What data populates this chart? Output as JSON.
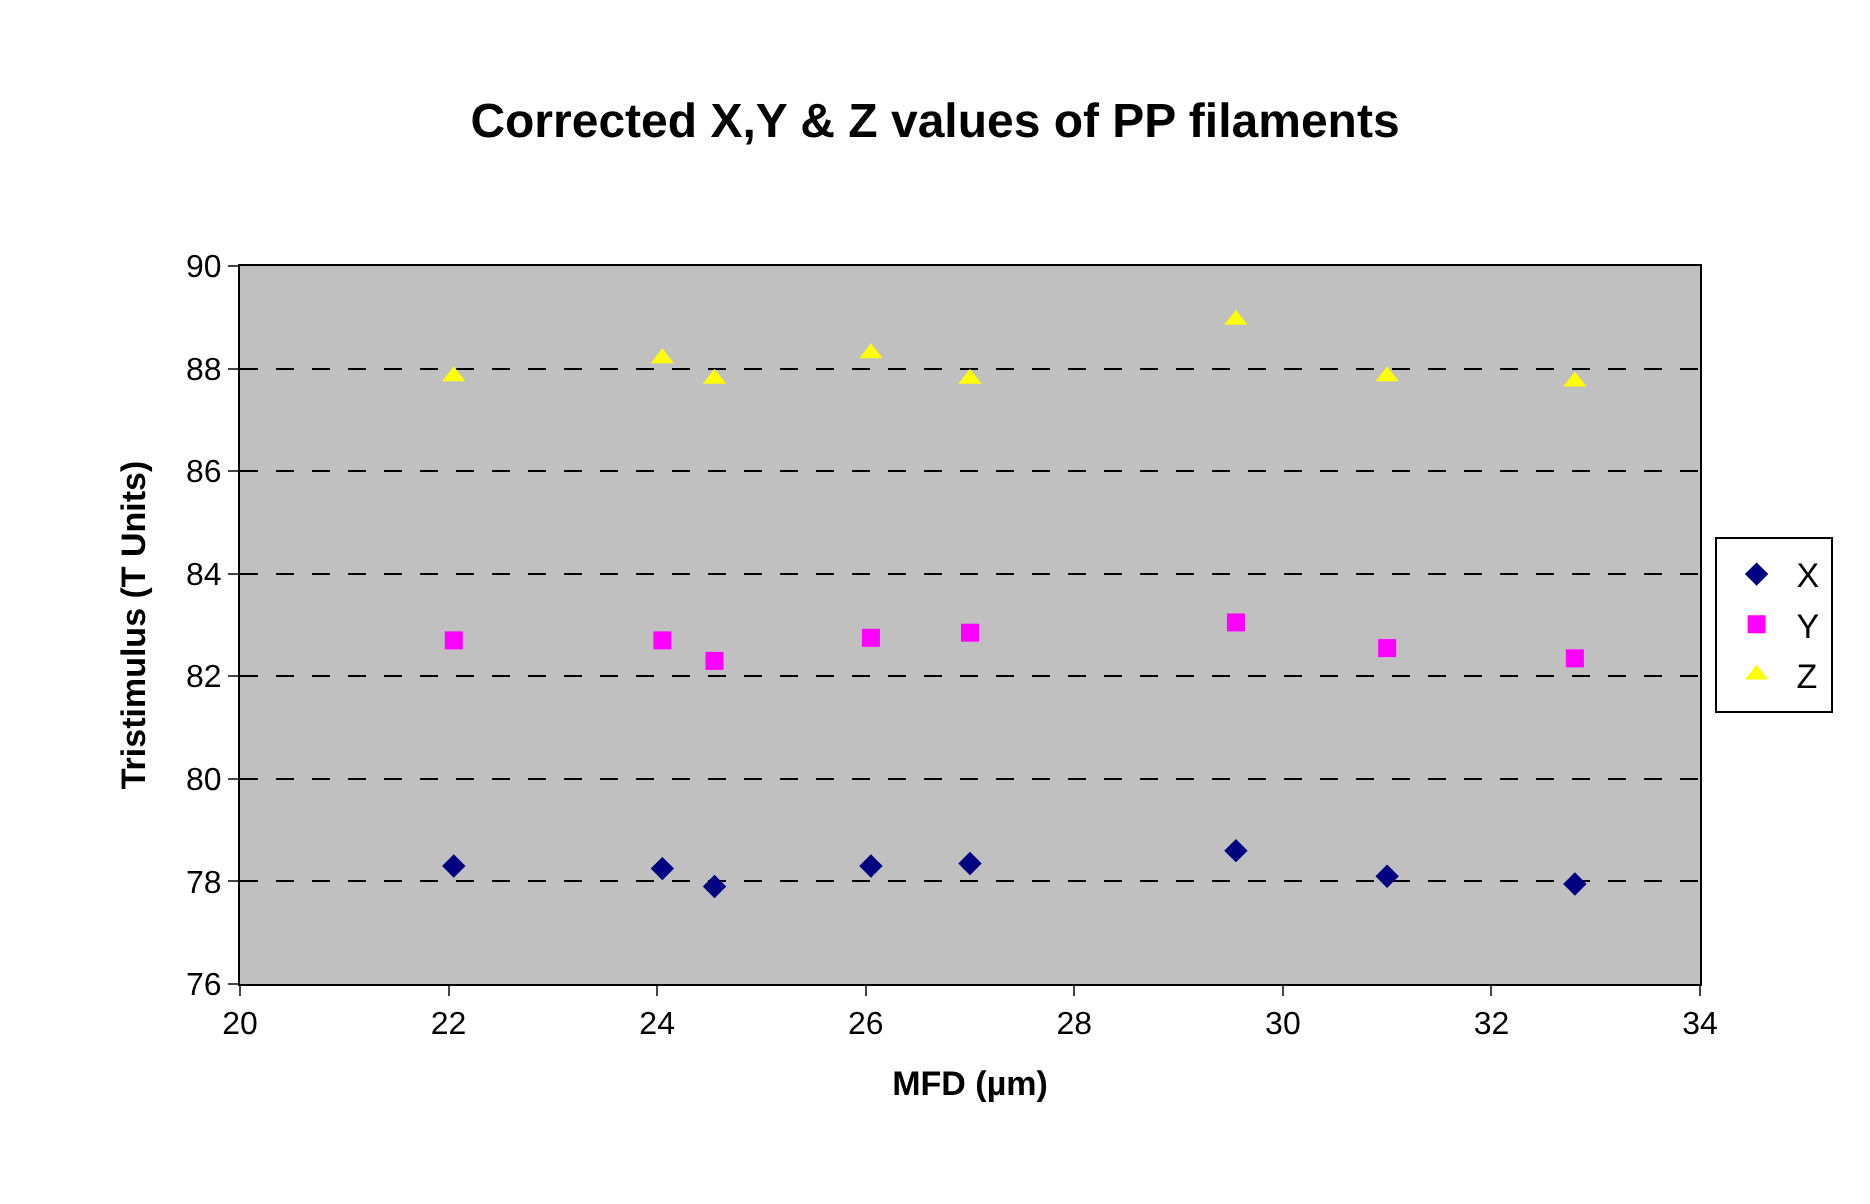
{
  "chart_data": {
    "type": "scatter",
    "title": "Corrected X,Y & Z values of PP filaments",
    "xlabel": "MFD (µm)",
    "ylabel": "Tristimulus (T Units)",
    "x": [
      22.05,
      24.05,
      24.55,
      26.05,
      27.0,
      29.55,
      31.0,
      32.8
    ],
    "series": [
      {
        "name": "X",
        "color": "#000080",
        "marker": "diamond",
        "values": [
          78.3,
          78.25,
          77.9,
          78.3,
          78.35,
          78.6,
          78.1,
          77.95
        ]
      },
      {
        "name": "Y",
        "color": "#ff00ff",
        "marker": "square",
        "values": [
          82.7,
          82.7,
          82.3,
          82.75,
          82.85,
          83.05,
          82.55,
          82.35
        ]
      },
      {
        "name": "Z",
        "color": "#ffff00",
        "marker": "triangle",
        "values": [
          87.85,
          88.2,
          87.8,
          88.3,
          87.8,
          88.95,
          87.85,
          87.75
        ]
      }
    ],
    "xlim": [
      20,
      34
    ],
    "xticks": [
      20,
      22,
      24,
      26,
      28,
      30,
      32,
      34
    ],
    "ylim": [
      76,
      90
    ],
    "yticks": [
      76,
      78,
      80,
      82,
      84,
      86,
      88,
      90
    ],
    "grid": "y",
    "legend": "right"
  }
}
